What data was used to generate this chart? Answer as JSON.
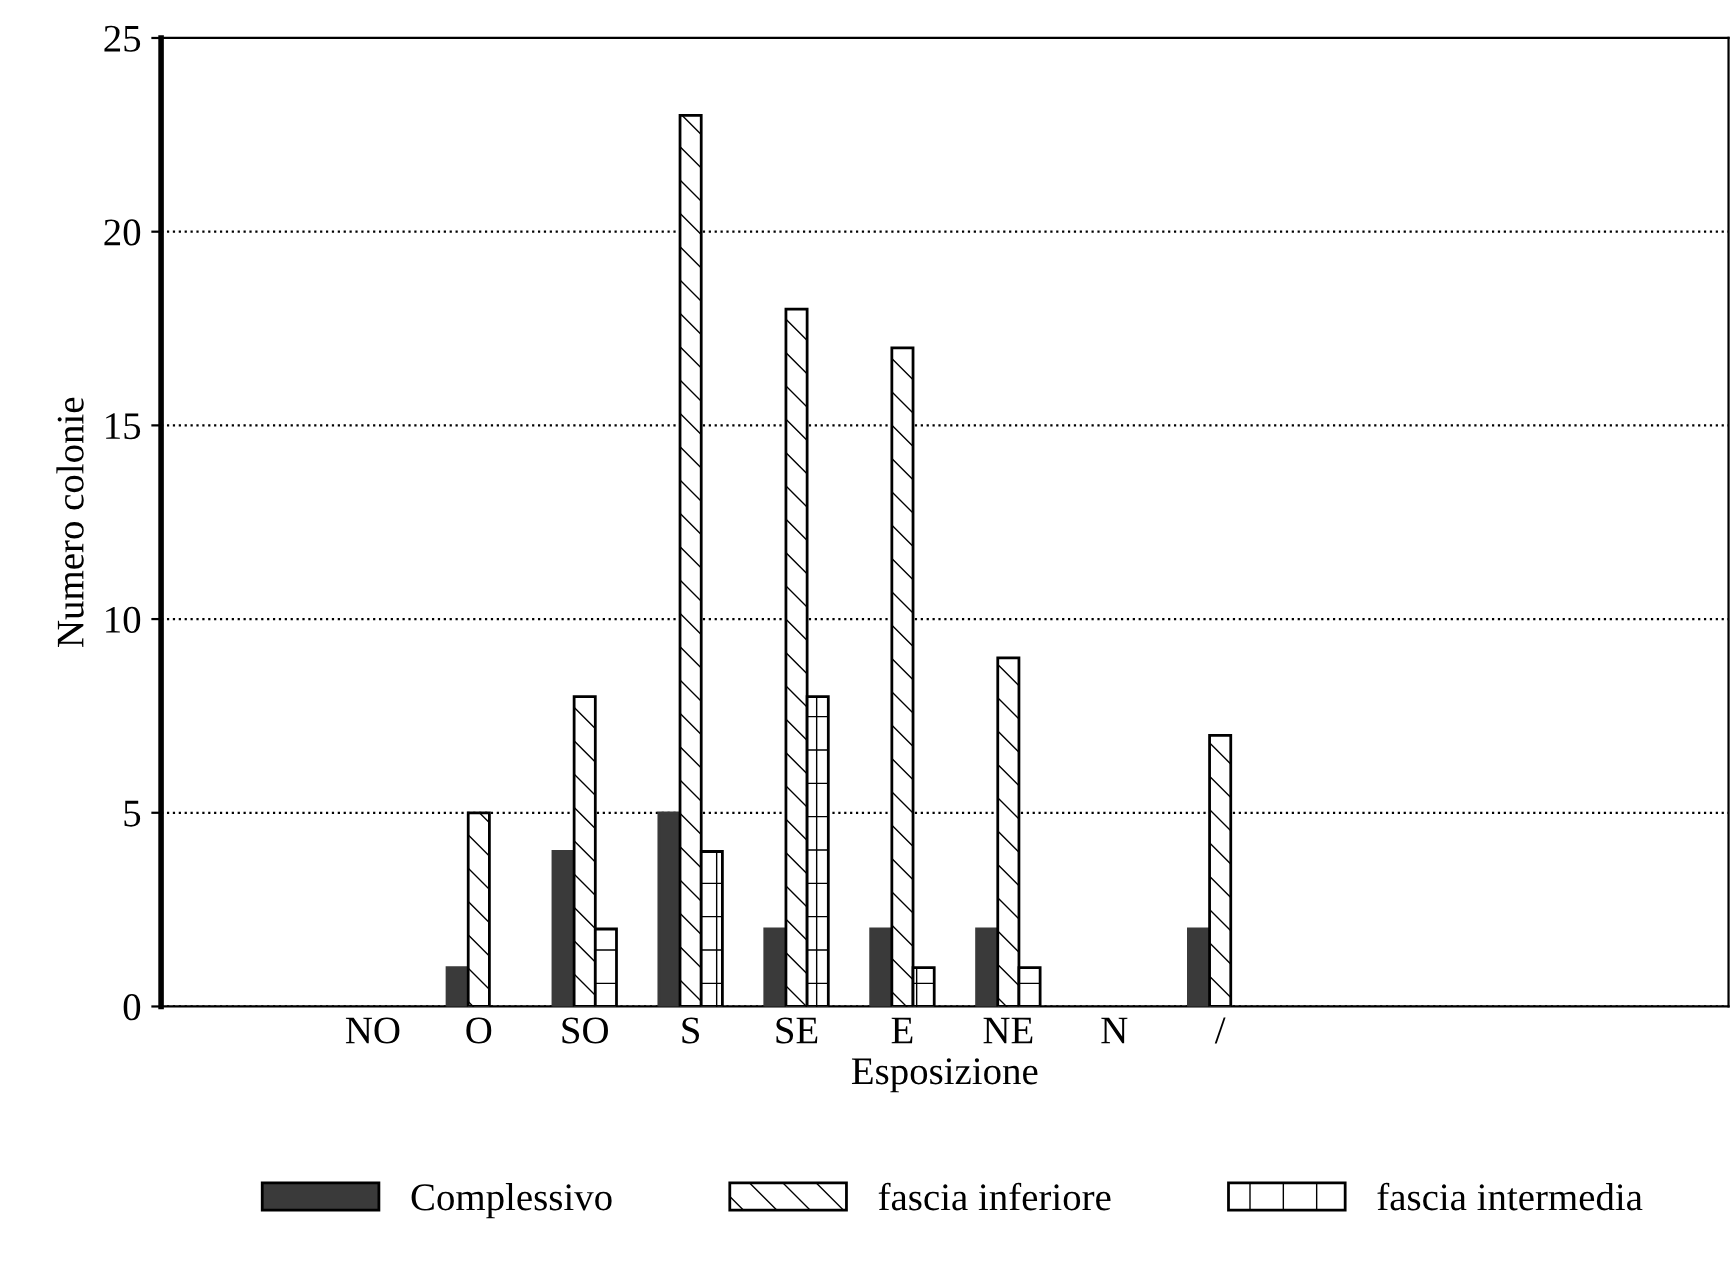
{
  "chart_data": {
    "type": "bar",
    "xlabel": "Esposizione",
    "ylabel": "Numero colonie",
    "categories": [
      "NO",
      "O",
      "SO",
      "S",
      "SE",
      "E",
      "NE",
      "N",
      "/"
    ],
    "series": [
      {
        "name": "Complessivo",
        "color": "#3a3a3a",
        "values": [
          0,
          1,
          4,
          5,
          2,
          2,
          2,
          0,
          2
        ]
      },
      {
        "name": "fascia inferiore",
        "color": "#000000",
        "values": [
          0,
          5,
          8,
          23,
          18,
          17,
          9,
          0,
          7
        ]
      },
      {
        "name": "fascia intermedia",
        "color": "#000000",
        "values": [
          0,
          0,
          2,
          4,
          8,
          1,
          1,
          0,
          0
        ]
      }
    ],
    "ylim": [
      0,
      25
    ],
    "yticks": [
      0,
      5,
      10,
      15,
      20,
      25
    ],
    "grid": "y",
    "legend": "bottom"
  }
}
